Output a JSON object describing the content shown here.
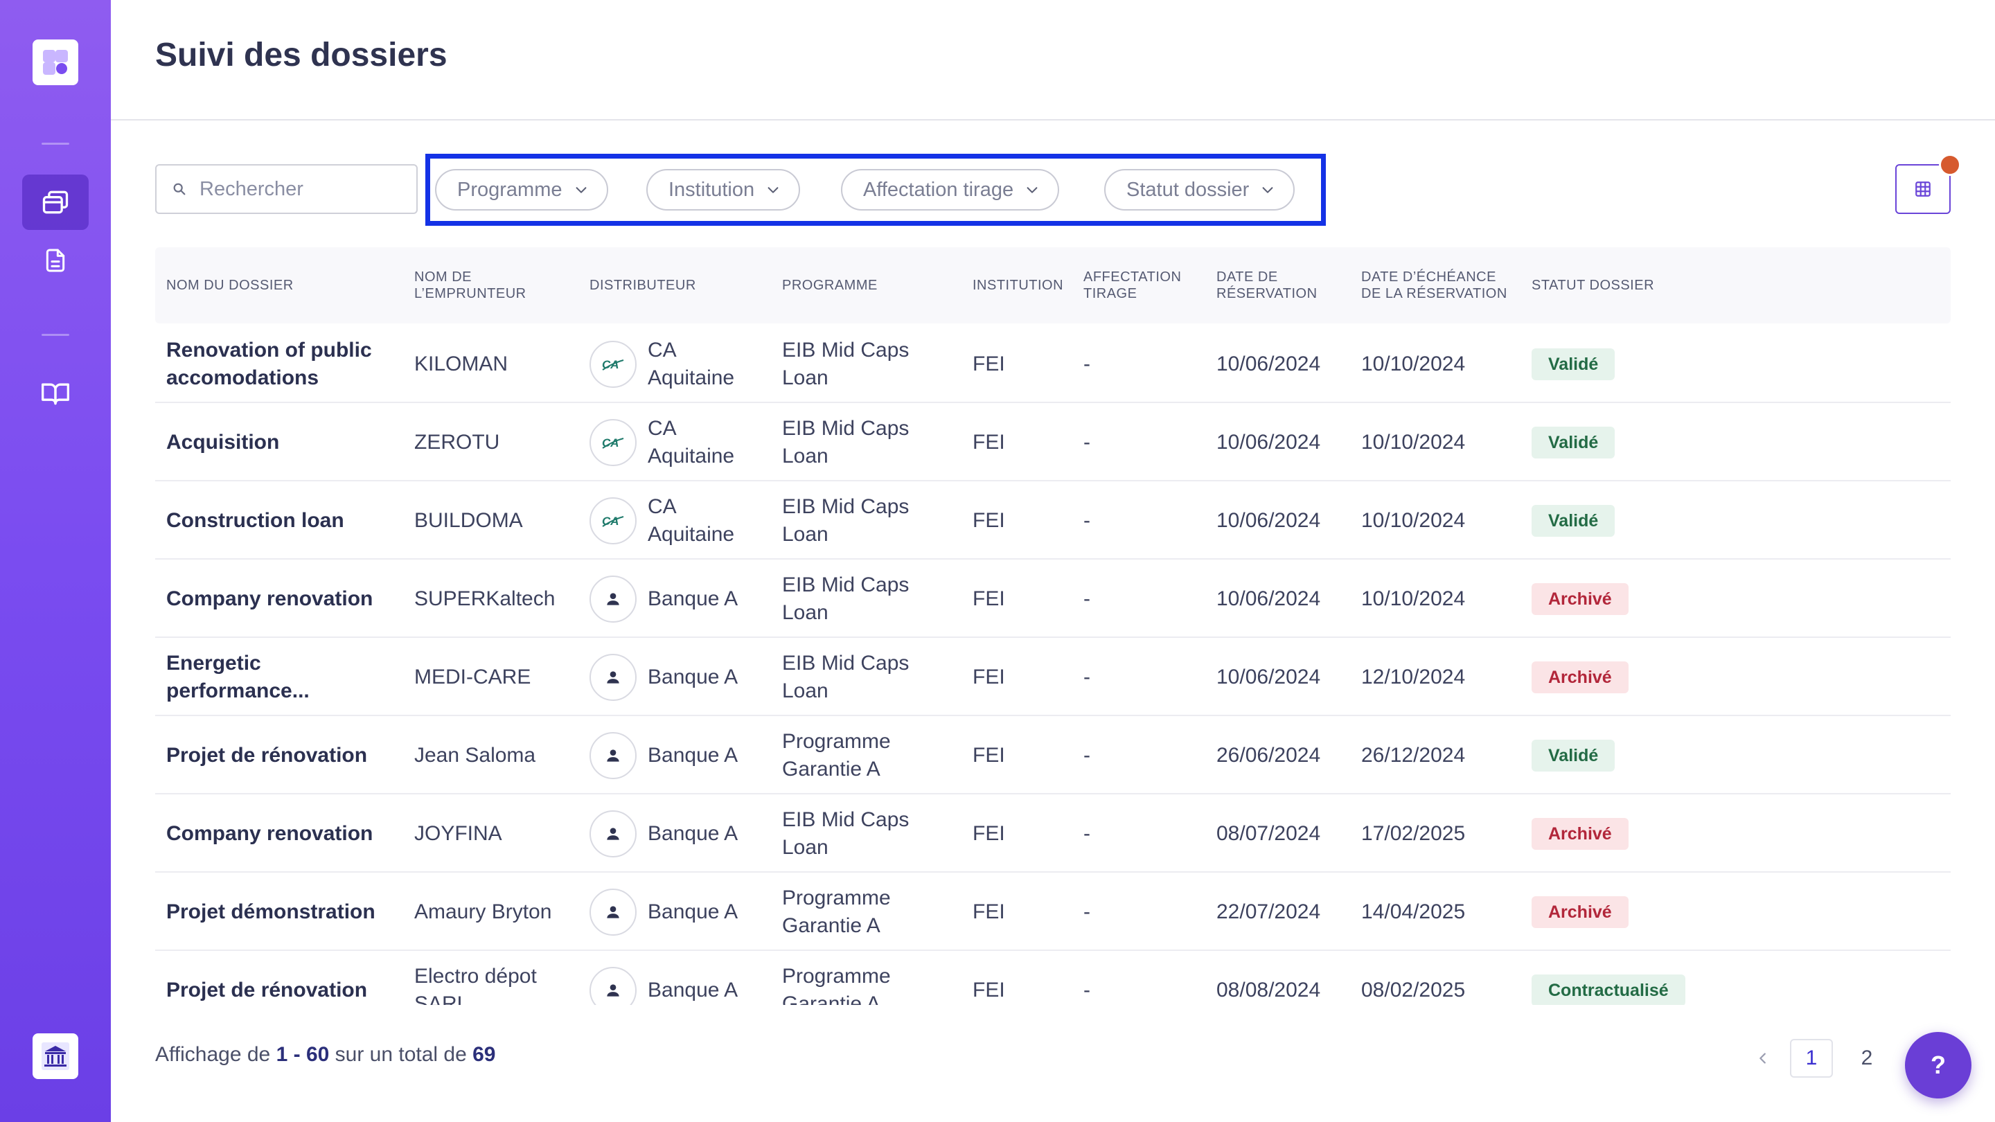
{
  "page": {
    "title": "Suivi des dossiers"
  },
  "search": {
    "placeholder": "Rechercher"
  },
  "filters": [
    {
      "label": "Programme"
    },
    {
      "label": "Institution"
    },
    {
      "label": "Affectation tirage"
    },
    {
      "label": "Statut dossier"
    }
  ],
  "table": {
    "headers": {
      "name": "NOM DU DOSSIER",
      "borrower_1": "NOM DE",
      "borrower_2": "L’EMPRUNTEUR",
      "distributor": "DISTRIBUTEUR",
      "program": "PROGRAMME",
      "institution": "INSTITUTION",
      "affect_1": "AFFECTATION",
      "affect_2": "TIRAGE",
      "resdate_1": "DATE DE",
      "resdate_2": "RÉSERVATION",
      "enddate_1": "DATE D’ÉCHÉANCE",
      "enddate_2": "DE LA RÉSERVATION",
      "status": "STATUT DOSSIER"
    },
    "rows": [
      {
        "name": "Renovation of public accomodations",
        "borrower": "KILOMAN",
        "distributor": "CA Aquitaine",
        "dist_icon": "ca-logo-icon",
        "program": "EIB Mid Caps Loan",
        "institution": "FEI",
        "affectation": "-",
        "res_date": "10/06/2024",
        "end_date": "10/10/2024",
        "status": "Validé",
        "status_kind": "valide"
      },
      {
        "name": "Acquisition",
        "borrower": "ZEROTU",
        "distributor": "CA Aquitaine",
        "dist_icon": "ca-logo-icon",
        "program": "EIB Mid Caps Loan",
        "institution": "FEI",
        "affectation": "-",
        "res_date": "10/06/2024",
        "end_date": "10/10/2024",
        "status": "Validé",
        "status_kind": "valide"
      },
      {
        "name": "Construction loan",
        "borrower": "BUILDOMA",
        "distributor": "CA Aquitaine",
        "dist_icon": "ca-logo-icon",
        "program": "EIB Mid Caps Loan",
        "institution": "FEI",
        "affectation": "-",
        "res_date": "10/06/2024",
        "end_date": "10/10/2024",
        "status": "Validé",
        "status_kind": "valide"
      },
      {
        "name": "Company renovation",
        "borrower": "SUPERKaltech",
        "distributor": "Banque A",
        "dist_icon": "user-icon",
        "program": "EIB Mid Caps Loan",
        "institution": "FEI",
        "affectation": "-",
        "res_date": "10/06/2024",
        "end_date": "10/10/2024",
        "status": "Archivé",
        "status_kind": "archive"
      },
      {
        "name": "Energetic performance...",
        "borrower": "MEDI-CARE",
        "distributor": "Banque A",
        "dist_icon": "user-icon",
        "program": "EIB Mid Caps Loan",
        "institution": "FEI",
        "affectation": "-",
        "res_date": "10/06/2024",
        "end_date": "12/10/2024",
        "status": "Archivé",
        "status_kind": "archive"
      },
      {
        "name": "Projet de rénovation",
        "borrower": "Jean Saloma",
        "distributor": "Banque A",
        "dist_icon": "user-icon",
        "program": "Programme Garantie A",
        "institution": "FEI",
        "affectation": "-",
        "res_date": "26/06/2024",
        "end_date": "26/12/2024",
        "status": "Validé",
        "status_kind": "valide"
      },
      {
        "name": "Company renovation",
        "borrower": "JOYFINA",
        "distributor": "Banque A",
        "dist_icon": "user-icon",
        "program": "EIB Mid Caps Loan",
        "institution": "FEI",
        "affectation": "-",
        "res_date": "08/07/2024",
        "end_date": "17/02/2025",
        "status": "Archivé",
        "status_kind": "archive"
      },
      {
        "name": "Projet démonstration",
        "borrower": "Amaury Bryton",
        "distributor": "Banque A",
        "dist_icon": "user-icon",
        "program": "Programme Garantie A",
        "institution": "FEI",
        "affectation": "-",
        "res_date": "22/07/2024",
        "end_date": "14/04/2025",
        "status": "Archivé",
        "status_kind": "archive"
      },
      {
        "name": "Projet de rénovation",
        "borrower": "Electro dépot SARL",
        "distributor": "Banque A",
        "dist_icon": "user-icon",
        "program": "Programme Garantie A",
        "institution": "FEI",
        "affectation": "-",
        "res_date": "08/08/2024",
        "end_date": "08/02/2025",
        "status": "Contractualisé",
        "status_kind": "contract"
      }
    ]
  },
  "footer": {
    "prefix": "Affichage de ",
    "range": "1 - 60",
    "middle": " sur un total de ",
    "total": "69"
  },
  "pagination": {
    "pages": [
      "1",
      "2"
    ],
    "current": "1"
  },
  "help": {
    "label": "?"
  },
  "colors": {
    "sidebar": "#7a4cf0",
    "accent": "#6a3ed6",
    "highlight_border": "#1432e6"
  }
}
